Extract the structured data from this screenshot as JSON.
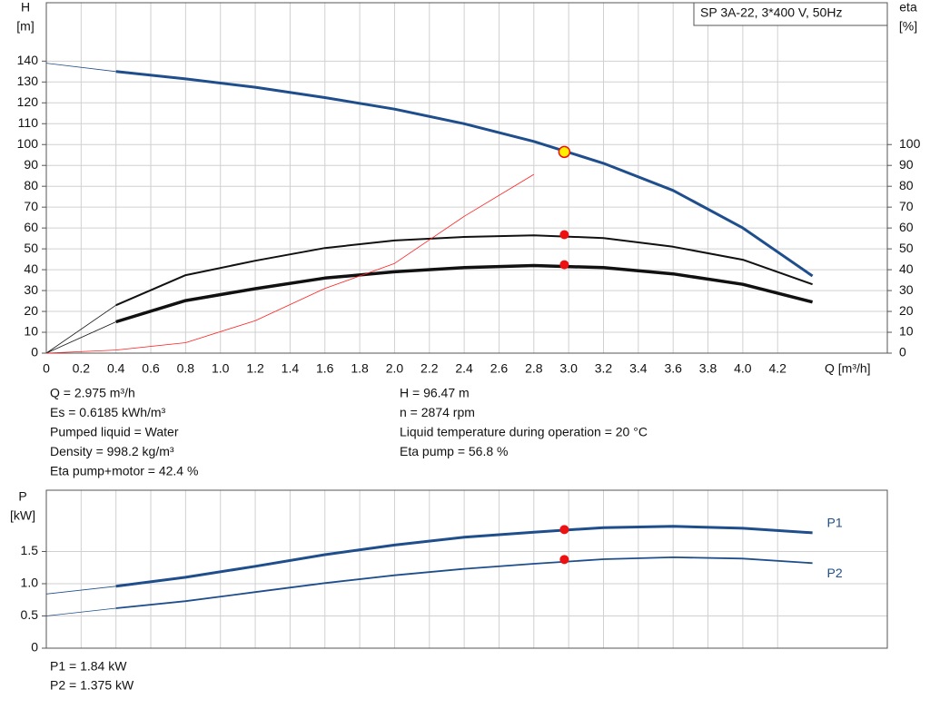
{
  "chart_data": [
    {
      "type": "line",
      "title": "SP 3A-22, 3*400 V, 50Hz",
      "y_label": "H",
      "y_unit": "[m]",
      "y2_label": "eta",
      "y2_unit": "[%]",
      "x_label": "Q [m³/h]",
      "x": [
        0,
        0.4,
        0.8,
        1.2,
        1.6,
        2.0,
        2.4,
        2.8,
        3.2,
        3.6,
        4.0,
        4.4
      ],
      "series": [
        {
          "color": "#1f4e8c",
          "width": 3,
          "axis": "y",
          "values": [
            139,
            135,
            131.5,
            127.5,
            122.5,
            117,
            110,
            101.5,
            91,
            78,
            60,
            37
          ]
        },
        {
          "color": "#111111",
          "width": 2,
          "axis": "y2",
          "values": [
            0,
            23,
            37.4,
            44.3,
            50.4,
            54,
            55.7,
            56.5,
            55.2,
            51,
            44.8,
            33
          ]
        },
        {
          "color": "#111111",
          "width": 3.5,
          "axis": "y2",
          "values": [
            0,
            15,
            25.2,
            30.9,
            36,
            39,
            41,
            42,
            41,
            38,
            33,
            24.5
          ]
        },
        {
          "color": "#ff2020",
          "width": 0.8,
          "axis": "y",
          "values": [
            0,
            1.5,
            5,
            15.6,
            31,
            43,
            65.6,
            85.7,
            null,
            null,
            null,
            null
          ]
        }
      ],
      "points": [
        {
          "x": 2.975,
          "value": 96.47,
          "axis": "y",
          "color": "#ffee00"
        },
        {
          "x": 2.975,
          "value": 56.8,
          "axis": "y2",
          "color": "#ee1111"
        },
        {
          "x": 2.975,
          "value": 42.4,
          "axis": "y2",
          "color": "#ee1111"
        }
      ],
      "xlim": [
        0,
        4.83
      ],
      "xticks": [
        0,
        0.2,
        0.4,
        0.6,
        0.8,
        {
          "value": 1,
          "label": "1.0"
        },
        1.2,
        1.4,
        1.6,
        1.8,
        {
          "value": 2,
          "label": "2.0"
        },
        2.2,
        2.4,
        2.6,
        2.8,
        {
          "value": 3,
          "label": "3.0"
        },
        3.2,
        3.4,
        3.6,
        3.8,
        {
          "value": 4,
          "label": "4.0"
        },
        4.2
      ],
      "ylim": [
        0,
        168
      ],
      "yticks": [
        0,
        10,
        20,
        30,
        40,
        50,
        60,
        70,
        80,
        90,
        100,
        110,
        120,
        130,
        140
      ],
      "y2lim": [
        0,
        168
      ],
      "y2ticks": [
        0,
        10,
        20,
        30,
        40,
        50,
        60,
        70,
        80,
        90,
        100
      ],
      "grid": true
    },
    {
      "type": "line",
      "y_label": "P",
      "y_unit": "[kW]",
      "x": [
        0,
        0.4,
        0.8,
        1.2,
        1.6,
        2.0,
        2.4,
        2.8,
        3.2,
        3.6,
        4.0,
        4.4
      ],
      "series": [
        {
          "name": "P1",
          "color": "#1f4e8c",
          "width": 3,
          "values": [
            0.84,
            0.96,
            1.1,
            1.27,
            1.45,
            1.6,
            1.72,
            1.8,
            1.87,
            1.89,
            1.86,
            1.79
          ]
        },
        {
          "name": "P2",
          "color": "#1f4e8c",
          "width": 1.8,
          "values": [
            0.5,
            0.62,
            0.73,
            0.87,
            1.01,
            1.13,
            1.23,
            1.31,
            1.38,
            1.41,
            1.39,
            1.32
          ]
        }
      ],
      "points": [
        {
          "x": 2.975,
          "value": 1.84,
          "color": "#ee1111"
        },
        {
          "x": 2.975,
          "value": 1.375,
          "color": "#ee1111"
        }
      ],
      "xlim": [
        0,
        4.83
      ],
      "xgrid": [
        0,
        0.2,
        0.4,
        0.6,
        0.8,
        1,
        1.2,
        1.4,
        1.6,
        1.8,
        2,
        2.2,
        2.4,
        2.6,
        2.8,
        3,
        3.2,
        3.4,
        3.6,
        3.8,
        4,
        4.2
      ],
      "ylim": [
        0,
        2.45
      ],
      "yticks": [
        0,
        0.5,
        {
          "value": 1,
          "label": "1.0"
        },
        1.5
      ],
      "grid": true
    }
  ],
  "info": {
    "left": [
      "Q = 2.975 m³/h",
      "Es = 0.6185 kWh/m³",
      "Pumped liquid = Water",
      "Density = 998.2 kg/m³",
      "Eta pump+motor = 42.4 %"
    ],
    "right": [
      "H = 96.47 m",
      "n = 2874 rpm",
      "Liquid temperature during operation = 20 °C",
      "Eta pump = 56.8 %"
    ],
    "power": [
      "P1 = 1.84 kW",
      "P2 = 1.375 kW"
    ]
  }
}
